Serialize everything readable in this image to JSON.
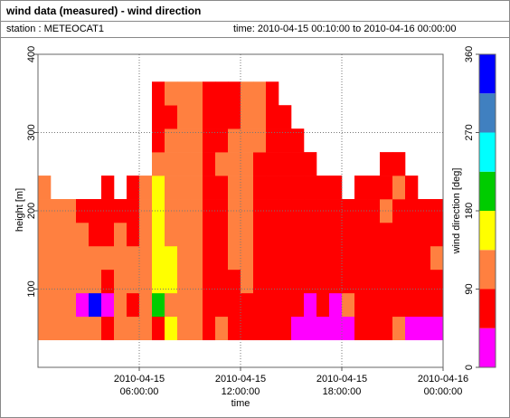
{
  "header": {
    "title": "wind data (measured) - wind direction",
    "station": "station : METEOCAT1",
    "time": "time: 2010-04-15 00:10:00 to 2010-04-16 00:00:00"
  },
  "chart_data": {
    "type": "heatmap",
    "x_label": "time",
    "y_label": "height [m]",
    "xlim": [
      0,
      24
    ],
    "xticks": [
      {
        "value": 6,
        "label": "2010-04-15 06:00:00"
      },
      {
        "value": 12,
        "label": "2010-04-15 12:00:00"
      },
      {
        "value": 18,
        "label": "2010-04-15 18:00:00"
      },
      {
        "value": 24,
        "label": "2010-04-16 00:00:00"
      }
    ],
    "ylim": [
      0,
      400
    ],
    "yticks": [
      100,
      200,
      300,
      400
    ],
    "grid": true,
    "xbins": [
      0,
      0.75,
      1.5,
      2.25,
      3,
      3.75,
      4.5,
      5.25,
      6,
      6.75,
      7.5,
      8.25,
      9,
      9.75,
      10.5,
      11.25,
      12,
      12.75,
      13.5,
      14.25,
      15,
      15.75,
      16.5,
      17.25,
      18,
      18.75,
      19.5,
      20.25,
      21,
      21.75,
      22.5,
      23.25,
      24
    ],
    "ybins": [
      35,
      65,
      95,
      125,
      155,
      185,
      215,
      245,
      275,
      305,
      335,
      365
    ],
    "values": [
      [
        110,
        110,
        110,
        110,
        110,
        110,
        110,
        null,
        null,
        null,
        null
      ],
      [
        110,
        110,
        110,
        110,
        110,
        110,
        null,
        null,
        null,
        null,
        null
      ],
      [
        110,
        110,
        110,
        110,
        110,
        110,
        null,
        null,
        null,
        null,
        null
      ],
      [
        110,
        20,
        110,
        110,
        110,
        70,
        null,
        null,
        null,
        null,
        null
      ],
      [
        110,
        340,
        110,
        110,
        70,
        70,
        null,
        null,
        null,
        null,
        null
      ],
      [
        70,
        20,
        70,
        110,
        70,
        70,
        70,
        null,
        null,
        null,
        null
      ],
      [
        110,
        110,
        110,
        110,
        110,
        70,
        null,
        null,
        null,
        null,
        null
      ],
      [
        110,
        70,
        110,
        110,
        70,
        70,
        70,
        null,
        null,
        null,
        null
      ],
      [
        110,
        110,
        110,
        110,
        110,
        110,
        110,
        null,
        null,
        null,
        null
      ],
      [
        70,
        200,
        160,
        160,
        160,
        160,
        160,
        110,
        70,
        70,
        70
      ],
      [
        160,
        110,
        160,
        160,
        110,
        110,
        110,
        110,
        110,
        70,
        110
      ],
      [
        110,
        110,
        110,
        110,
        110,
        110,
        110,
        110,
        110,
        110,
        110
      ],
      [
        110,
        110,
        110,
        110,
        110,
        110,
        110,
        110,
        110,
        110,
        110
      ],
      [
        70,
        70,
        70,
        70,
        70,
        70,
        70,
        70,
        70,
        70,
        70
      ],
      [
        110,
        70,
        70,
        70,
        70,
        70,
        70,
        110,
        70,
        70,
        70
      ],
      [
        70,
        70,
        70,
        110,
        110,
        110,
        110,
        110,
        110,
        70,
        70
      ],
      [
        70,
        70,
        110,
        110,
        110,
        110,
        110,
        110,
        110,
        110,
        110
      ],
      [
        70,
        70,
        70,
        70,
        70,
        70,
        70,
        70,
        110,
        110,
        110
      ],
      [
        70,
        70,
        70,
        70,
        70,
        70,
        70,
        70,
        70,
        70,
        70
      ],
      [
        70,
        70,
        70,
        70,
        70,
        70,
        70,
        70,
        70,
        70,
        null
      ],
      [
        20,
        70,
        70,
        70,
        70,
        70,
        70,
        70,
        70,
        null,
        null
      ],
      [
        20,
        20,
        70,
        70,
        70,
        70,
        70,
        70,
        null,
        null,
        null
      ],
      [
        20,
        70,
        70,
        70,
        70,
        70,
        70,
        null,
        null,
        null,
        null
      ],
      [
        20,
        20,
        70,
        70,
        70,
        70,
        70,
        null,
        null,
        null,
        null
      ],
      [
        20,
        110,
        70,
        70,
        70,
        70,
        null,
        null,
        null,
        null,
        null
      ],
      [
        70,
        70,
        70,
        70,
        70,
        70,
        70,
        null,
        null,
        null,
        null
      ],
      [
        70,
        70,
        70,
        70,
        70,
        70,
        70,
        null,
        null,
        null,
        null
      ],
      [
        70,
        70,
        70,
        70,
        70,
        110,
        70,
        70,
        null,
        null,
        null
      ],
      [
        110,
        70,
        70,
        70,
        70,
        70,
        110,
        70,
        null,
        null,
        null
      ],
      [
        20,
        70,
        70,
        70,
        70,
        70,
        70,
        null,
        null,
        null,
        null
      ],
      [
        20,
        70,
        70,
        70,
        70,
        70,
        null,
        null,
        null,
        null,
        null
      ],
      [
        20,
        70,
        70,
        110,
        70,
        70,
        null,
        null,
        null,
        null,
        null
      ]
    ],
    "colorbar": {
      "label": "wind direction [deg]",
      "lim": [
        0,
        360
      ],
      "ticks": [
        0,
        90,
        180,
        270,
        360
      ],
      "bounds": [
        0,
        45,
        90,
        135,
        180,
        225,
        270,
        315,
        360
      ],
      "colors": [
        "#ff00ff",
        "#ff0000",
        "#ff8040",
        "#ffff00",
        "#00cc00",
        "#00ffff",
        "#4080c0",
        "#0000ff"
      ]
    }
  }
}
